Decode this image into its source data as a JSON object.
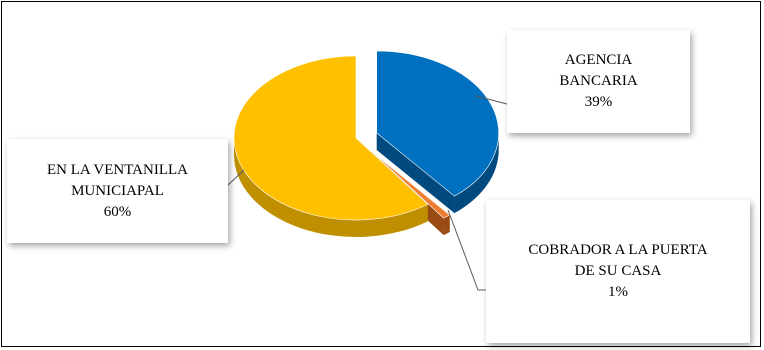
{
  "chart_data": {
    "type": "pie",
    "title": "",
    "style": "3d-exploded",
    "legend": "none",
    "slices": [
      {
        "label_line1": "AGENCIA",
        "label_line2": "BANCARIA",
        "value": 39,
        "value_label": "39%",
        "color": "#0070C0",
        "side_color": "#004A80"
      },
      {
        "label_line1": "COBRADOR A LA PUERTA",
        "label_line2": "DE SU CASA",
        "value": 1,
        "value_label": "1%",
        "color": "#ED7D31",
        "side_color": "#9A4A14"
      },
      {
        "label_line1": "EN LA VENTANILLA",
        "label_line2": "MUNICIAPAL",
        "value": 60,
        "value_label": "60%",
        "color": "#FFC000",
        "side_color": "#BF8F00"
      }
    ]
  }
}
